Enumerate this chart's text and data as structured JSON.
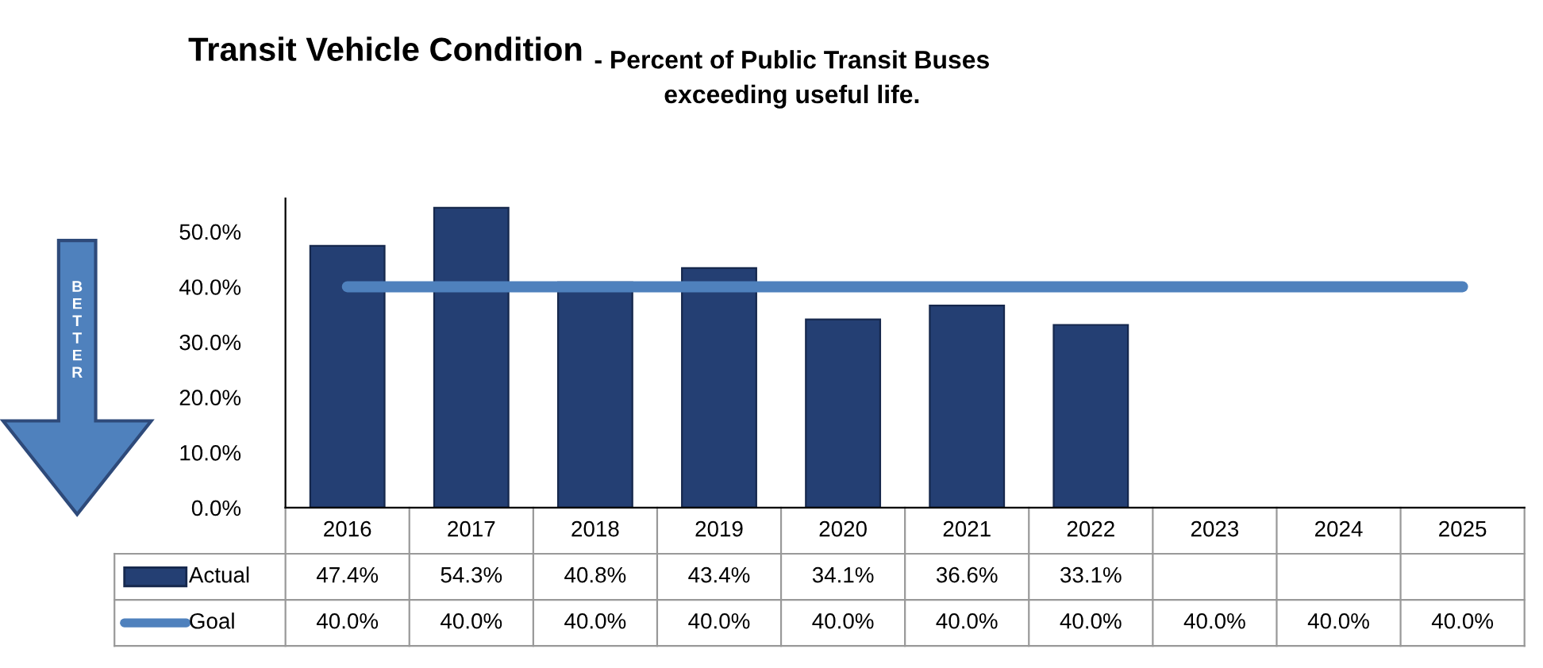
{
  "chart_data": {
    "type": "bar",
    "title": "Transit Vehicle Condition",
    "subtitle": "- Percent of Public Transit Buses\nexceeding useful life.",
    "annotations": [
      "BETTER"
    ],
    "categories": [
      "2016",
      "2017",
      "2018",
      "2019",
      "2020",
      "2021",
      "2022",
      "2023",
      "2024",
      "2025"
    ],
    "series": [
      {
        "name": "Actual",
        "color": "#243f73",
        "values": [
          47.4,
          54.3,
          40.8,
          43.4,
          34.1,
          36.6,
          33.1,
          null,
          null,
          null
        ],
        "value_labels": [
          "47.4%",
          "54.3%",
          "40.8%",
          "43.4%",
          "34.1%",
          "36.6%",
          "33.1%",
          null,
          null,
          null
        ]
      },
      {
        "name": "Goal",
        "type": "line",
        "color": "#4f81bd",
        "values": [
          40.0,
          40.0,
          40.0,
          40.0,
          40.0,
          40.0,
          40.0,
          40.0,
          40.0,
          40.0
        ],
        "value_labels": [
          "40.0%",
          "40.0%",
          "40.0%",
          "40.0%",
          "40.0%",
          "40.0%",
          "40.0%",
          "40.0%",
          "40.0%",
          "40.0%"
        ]
      }
    ],
    "ylim": [
      0,
      56
    ],
    "yticks": [
      {
        "value": 0,
        "label": "0.0%"
      },
      {
        "value": 10,
        "label": "10.0%"
      },
      {
        "value": 20,
        "label": "20.0%"
      },
      {
        "value": 30,
        "label": "30.0%"
      },
      {
        "value": 40,
        "label": "40.0%"
      },
      {
        "value": 50,
        "label": "50.0%"
      }
    ],
    "grid": false,
    "legend": "bottom"
  }
}
